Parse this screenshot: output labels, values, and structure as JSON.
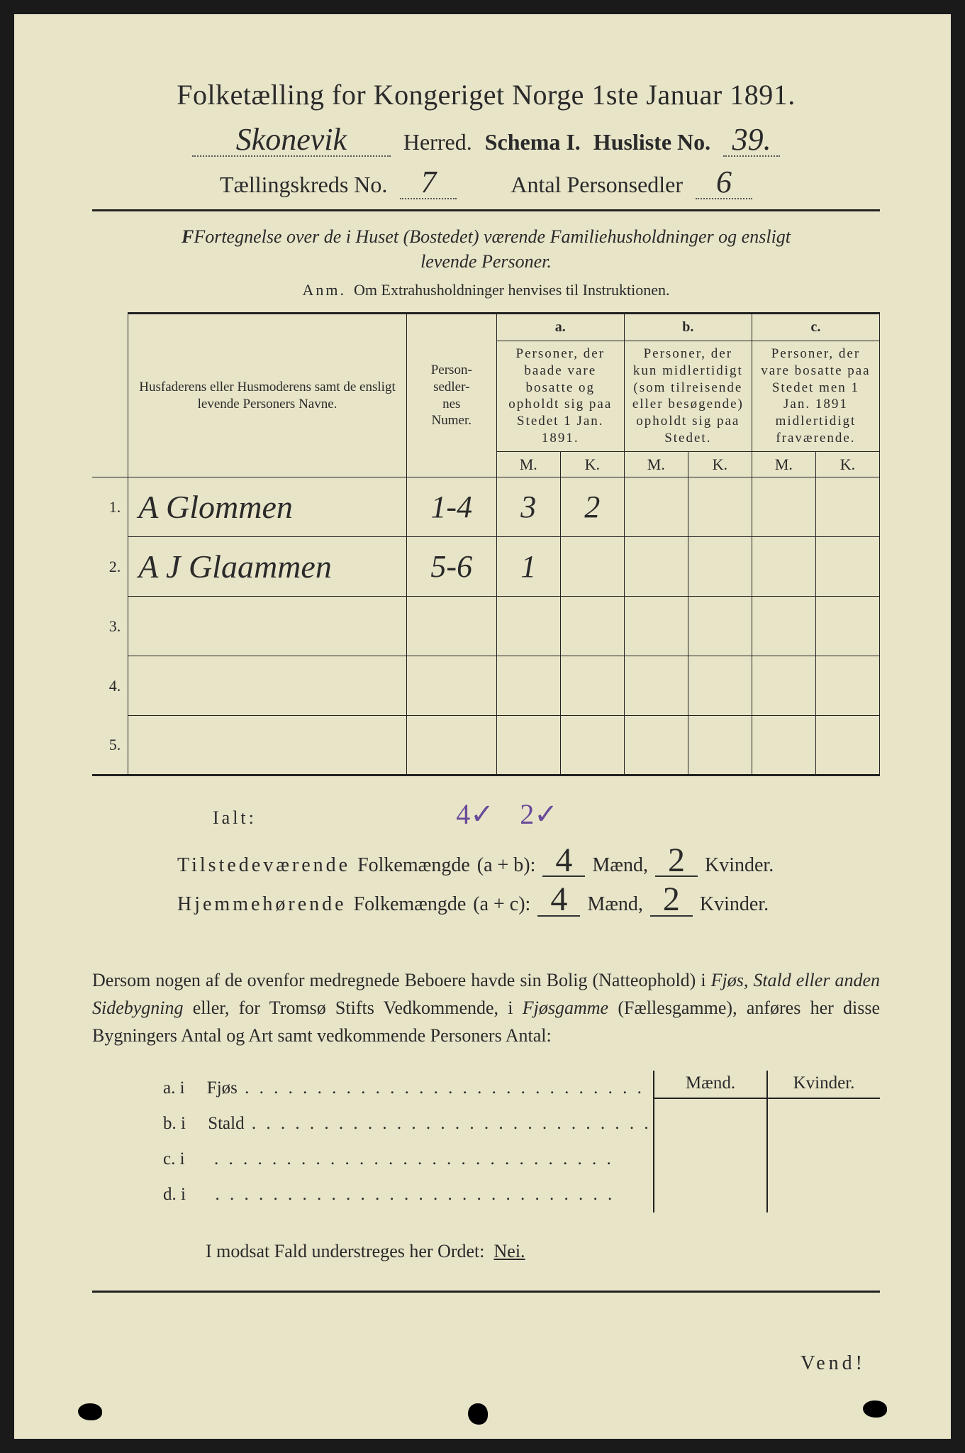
{
  "title": "Folketælling for Kongeriget Norge 1ste Januar 1891.",
  "header": {
    "herred_value": "Skonevik",
    "herred_label": "Herred.",
    "schema_label": "Schema I.",
    "husliste_label": "Husliste No.",
    "husliste_value": "39.",
    "kreds_label": "Tællingskreds No.",
    "kreds_value": "7",
    "antal_label": "Antal Personsedler",
    "antal_value": "6"
  },
  "subhead_line1": "Fortegnelse over de i Huset (Bostedet) værende Familiehusholdninger og ensligt",
  "subhead_line2": "levende Personer.",
  "anm_label": "Anm.",
  "anm_text": "Om Extrahusholdninger henvises til Instruktionen.",
  "table": {
    "col_name": "Husfaderens eller Husmoderens samt de ensligt levende Personers Navne.",
    "col_numer": "Person-\nsedler-\nnes\nNumer.",
    "letters": {
      "a": "a.",
      "b": "b.",
      "c": "c."
    },
    "col_a": "Personer, der baade vare bosatte og opholdt sig paa Stedet 1 Jan. 1891.",
    "col_b": "Personer, der kun midlertidigt (som tilreisende eller besøgende) opholdt sig paa Stedet.",
    "col_c": "Personer, der vare bosatte paa Stedet men 1 Jan. 1891 midlertidigt fraværende.",
    "m": "M.",
    "k": "K.",
    "rows": [
      {
        "n": "1.",
        "name": "A Glommen",
        "numer": "1-4",
        "am": "3",
        "ak": "2",
        "bm": "",
        "bk": "",
        "cm": "",
        "ck": ""
      },
      {
        "n": "2.",
        "name": "A J Glaammen",
        "numer": "5-6",
        "am": "1",
        "ak": "",
        "bm": "",
        "bk": "",
        "cm": "",
        "ck": ""
      },
      {
        "n": "3.",
        "name": "",
        "numer": "",
        "am": "",
        "ak": "",
        "bm": "",
        "bk": "",
        "cm": "",
        "ck": ""
      },
      {
        "n": "4.",
        "name": "",
        "numer": "",
        "am": "",
        "ak": "",
        "bm": "",
        "bk": "",
        "cm": "",
        "ck": ""
      },
      {
        "n": "5.",
        "name": "",
        "numer": "",
        "am": "",
        "ak": "",
        "bm": "",
        "bk": "",
        "cm": "",
        "ck": ""
      }
    ]
  },
  "ialt": {
    "label": "Ialt:",
    "m": "4✓",
    "k": "2✓"
  },
  "totals": {
    "row1_label": "Tilstedeværende",
    "row2_label": "Hjemmehørende",
    "folk": "Folkemængde",
    "ab": "(a + b):",
    "ac": "(a + c):",
    "maend": "Mænd,",
    "kvinder": "Kvinder.",
    "r1m": "4",
    "r1k": "2",
    "r2m": "4",
    "r2k": "2"
  },
  "para": "Dersom nogen af de ovenfor medregnede Beboere havde sin Bolig (Natteophold) i Fjøs, Stald eller anden Sidebygning eller, for Tromsø Stifts Vedkommende, i Fjøsgamme (Fællesgamme), anføres her disse Bygningers Antal og Art samt vedkommende Personers Antal:",
  "side": {
    "maend": "Mænd.",
    "kvinder": "Kvinder.",
    "rows": [
      {
        "l": "a.  i",
        "m": "Fjøs"
      },
      {
        "l": "b.  i",
        "m": "Stald"
      },
      {
        "l": "c.  i",
        "m": ""
      },
      {
        "l": "d.  i",
        "m": ""
      }
    ]
  },
  "nei_line_prefix": "I modsat Fald understreges her Ordet:",
  "nei": "Nei.",
  "vend": "Vend!",
  "colors": {
    "paper": "#e8e4c8",
    "ink": "#2a2a2a",
    "handwriting_purple": "#6a4a9a"
  }
}
